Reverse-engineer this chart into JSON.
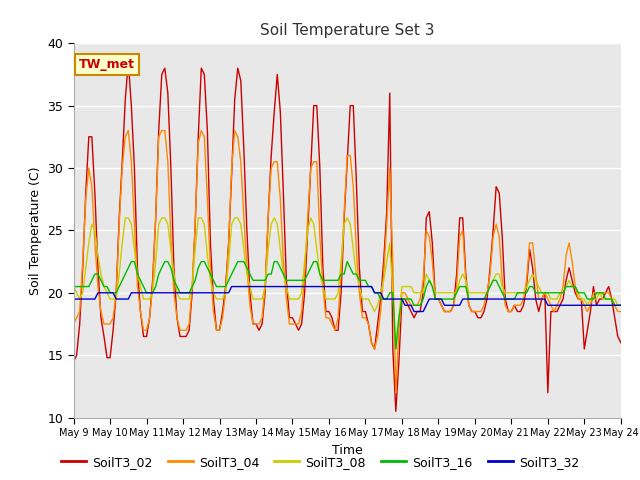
{
  "title": "Soil Temperature Set 3",
  "xlabel": "Time",
  "ylabel": "Soil Temperature (C)",
  "ylim": [
    10,
    40
  ],
  "xlim": [
    0,
    15
  ],
  "bg_color": "#e8e8e8",
  "fig_bg_color": "#ffffff",
  "annotation_text": "TW_met",
  "annotation_bg": "#ffffcc",
  "annotation_border": "#cc8800",
  "series_colors": {
    "SoilT3_02": "#cc0000",
    "SoilT3_04": "#ff8800",
    "SoilT3_08": "#cccc00",
    "SoilT3_16": "#00bb00",
    "SoilT3_32": "#0000cc"
  },
  "xtick_labels": [
    "May 9",
    "May 10",
    "May 11",
    "May 12",
    "May 13",
    "May 14",
    "May 15",
    "May 16",
    "May 17",
    "May 18",
    "May 19",
    "May 20",
    "May 21",
    "May 22",
    "May 23",
    "May 24"
  ],
  "ytick_labels": [
    10,
    15,
    20,
    25,
    30,
    35,
    40
  ],
  "t": [
    0.0,
    0.083,
    0.167,
    0.25,
    0.333,
    0.417,
    0.5,
    0.583,
    0.667,
    0.75,
    0.833,
    0.917,
    1.0,
    1.083,
    1.167,
    1.25,
    1.333,
    1.417,
    1.5,
    1.583,
    1.667,
    1.75,
    1.833,
    1.917,
    2.0,
    2.083,
    2.167,
    2.25,
    2.333,
    2.417,
    2.5,
    2.583,
    2.667,
    2.75,
    2.833,
    2.917,
    3.0,
    3.083,
    3.167,
    3.25,
    3.333,
    3.417,
    3.5,
    3.583,
    3.667,
    3.75,
    3.833,
    3.917,
    4.0,
    4.083,
    4.167,
    4.25,
    4.333,
    4.417,
    4.5,
    4.583,
    4.667,
    4.75,
    4.833,
    4.917,
    5.0,
    5.083,
    5.167,
    5.25,
    5.333,
    5.417,
    5.5,
    5.583,
    5.667,
    5.75,
    5.833,
    5.917,
    6.0,
    6.083,
    6.167,
    6.25,
    6.333,
    6.417,
    6.5,
    6.583,
    6.667,
    6.75,
    6.833,
    6.917,
    7.0,
    7.083,
    7.167,
    7.25,
    7.333,
    7.417,
    7.5,
    7.583,
    7.667,
    7.75,
    7.833,
    7.917,
    8.0,
    8.083,
    8.167,
    8.25,
    8.333,
    8.417,
    8.5,
    8.583,
    8.667,
    8.75,
    8.833,
    8.917,
    9.0,
    9.083,
    9.167,
    9.25,
    9.333,
    9.417,
    9.5,
    9.583,
    9.667,
    9.75,
    9.833,
    9.917,
    10.0,
    10.083,
    10.167,
    10.25,
    10.333,
    10.417,
    10.5,
    10.583,
    10.667,
    10.75,
    10.833,
    10.917,
    11.0,
    11.083,
    11.167,
    11.25,
    11.333,
    11.417,
    11.5,
    11.583,
    11.667,
    11.75,
    11.833,
    11.917,
    12.0,
    12.083,
    12.167,
    12.25,
    12.333,
    12.417,
    12.5,
    12.583,
    12.667,
    12.75,
    12.833,
    12.917,
    13.0,
    13.083,
    13.167,
    13.25,
    13.333,
    13.417,
    13.5,
    13.583,
    13.667,
    13.75,
    13.833,
    13.917,
    14.0,
    14.083,
    14.167,
    14.25,
    14.333,
    14.417,
    14.5,
    14.583,
    14.667,
    14.75,
    14.833,
    14.917,
    15.0
  ],
  "SoilT3_02": [
    14.5,
    15.0,
    17.5,
    22.0,
    28.0,
    32.5,
    32.5,
    28.0,
    22.0,
    18.0,
    16.5,
    14.8,
    14.8,
    17.0,
    20.0,
    26.0,
    30.5,
    35.5,
    38.5,
    35.0,
    30.0,
    22.0,
    18.5,
    16.5,
    16.5,
    18.0,
    21.0,
    26.0,
    33.0,
    37.5,
    38.0,
    36.0,
    30.0,
    22.0,
    18.0,
    16.5,
    16.5,
    16.5,
    17.0,
    20.0,
    25.5,
    32.5,
    38.0,
    37.5,
    33.0,
    24.0,
    19.5,
    17.0,
    17.0,
    18.5,
    20.5,
    24.0,
    29.5,
    35.5,
    38.0,
    37.0,
    31.5,
    25.0,
    20.0,
    17.5,
    17.5,
    17.0,
    17.5,
    20.0,
    26.0,
    31.0,
    34.5,
    37.5,
    34.5,
    28.0,
    21.0,
    18.0,
    18.0,
    17.5,
    17.0,
    17.5,
    20.0,
    25.0,
    30.0,
    35.0,
    35.0,
    30.0,
    22.0,
    18.5,
    18.5,
    18.0,
    17.0,
    17.0,
    20.0,
    26.0,
    30.5,
    35.0,
    35.0,
    29.0,
    22.0,
    18.5,
    18.5,
    17.5,
    16.0,
    15.5,
    17.5,
    19.5,
    22.5,
    26.5,
    36.0,
    15.5,
    10.5,
    14.5,
    19.5,
    19.5,
    19.0,
    18.5,
    18.0,
    18.5,
    18.5,
    20.0,
    26.0,
    26.5,
    24.0,
    19.5,
    19.5,
    19.0,
    18.5,
    18.5,
    18.5,
    19.0,
    21.5,
    26.0,
    26.0,
    21.5,
    19.0,
    18.5,
    18.5,
    18.0,
    18.0,
    18.5,
    19.5,
    22.0,
    25.0,
    28.5,
    28.0,
    24.5,
    19.5,
    18.5,
    18.5,
    19.0,
    18.5,
    18.5,
    19.0,
    20.5,
    23.5,
    22.0,
    19.5,
    18.5,
    19.5,
    20.0,
    12.0,
    18.5,
    18.5,
    18.5,
    19.0,
    19.5,
    21.0,
    22.0,
    21.0,
    20.0,
    19.5,
    19.5,
    15.5,
    17.0,
    18.5,
    20.5,
    19.0,
    19.5,
    19.5,
    20.0,
    20.5,
    19.5,
    18.0,
    16.5,
    16.0
  ],
  "SoilT3_04": [
    17.5,
    18.0,
    18.5,
    22.5,
    27.5,
    30.0,
    28.5,
    24.0,
    20.5,
    18.5,
    17.5,
    17.5,
    17.5,
    18.0,
    20.0,
    25.5,
    30.0,
    32.5,
    33.0,
    30.5,
    25.5,
    20.5,
    18.5,
    17.0,
    17.0,
    18.0,
    20.5,
    26.0,
    32.5,
    33.0,
    33.0,
    30.5,
    24.5,
    20.0,
    18.0,
    17.0,
    17.0,
    17.0,
    17.5,
    20.5,
    25.5,
    32.0,
    33.0,
    32.5,
    27.5,
    22.0,
    18.5,
    17.0,
    17.0,
    18.0,
    20.0,
    24.0,
    30.0,
    33.0,
    32.5,
    30.5,
    26.0,
    22.0,
    19.0,
    17.5,
    17.5,
    17.5,
    18.0,
    20.5,
    26.0,
    30.0,
    30.5,
    30.5,
    27.5,
    22.5,
    19.5,
    17.5,
    17.5,
    17.5,
    17.5,
    18.5,
    21.5,
    26.0,
    30.0,
    30.5,
    30.5,
    24.5,
    20.5,
    18.0,
    18.0,
    17.5,
    17.0,
    18.0,
    21.5,
    26.5,
    31.0,
    31.0,
    28.5,
    23.5,
    20.0,
    18.0,
    18.0,
    17.5,
    16.0,
    15.5,
    16.5,
    18.5,
    21.5,
    25.5,
    30.0,
    22.5,
    12.0,
    17.0,
    20.0,
    20.0,
    19.5,
    19.0,
    19.0,
    19.0,
    19.5,
    21.0,
    25.0,
    24.5,
    22.5,
    19.5,
    19.5,
    19.0,
    18.5,
    18.5,
    18.5,
    19.0,
    20.5,
    24.5,
    25.0,
    21.0,
    19.0,
    18.5,
    18.5,
    18.5,
    18.5,
    19.0,
    20.0,
    21.5,
    24.5,
    25.5,
    24.5,
    21.0,
    19.0,
    18.5,
    18.5,
    19.0,
    19.0,
    19.0,
    19.5,
    21.0,
    24.0,
    24.0,
    21.5,
    19.5,
    19.5,
    20.0,
    19.5,
    19.0,
    18.5,
    19.0,
    19.5,
    20.5,
    23.0,
    24.0,
    22.5,
    20.5,
    19.5,
    19.5,
    19.0,
    18.5,
    19.0,
    20.0,
    20.0,
    20.0,
    20.0,
    20.0,
    20.0,
    19.5,
    19.0,
    18.5,
    18.5
  ],
  "SoilT3_08": [
    20.5,
    20.0,
    19.5,
    20.0,
    22.0,
    24.0,
    25.5,
    25.0,
    23.0,
    21.5,
    20.5,
    20.0,
    19.5,
    19.5,
    19.5,
    21.5,
    24.0,
    26.0,
    26.0,
    25.5,
    23.5,
    21.5,
    20.5,
    19.5,
    19.5,
    19.5,
    20.0,
    22.5,
    25.5,
    26.0,
    26.0,
    25.5,
    23.5,
    21.5,
    20.0,
    19.5,
    19.5,
    19.5,
    19.5,
    20.5,
    23.5,
    26.0,
    26.0,
    25.5,
    23.0,
    21.0,
    20.0,
    19.5,
    19.5,
    19.5,
    20.0,
    22.5,
    25.5,
    26.0,
    26.0,
    25.5,
    23.5,
    21.5,
    20.5,
    19.5,
    19.5,
    19.5,
    19.5,
    20.5,
    23.5,
    25.5,
    26.0,
    25.5,
    23.5,
    21.5,
    20.5,
    19.5,
    19.5,
    19.5,
    19.5,
    20.0,
    22.5,
    25.0,
    26.0,
    25.5,
    23.5,
    21.5,
    20.5,
    19.5,
    19.5,
    19.5,
    19.5,
    20.0,
    22.5,
    25.5,
    26.0,
    25.5,
    23.5,
    21.5,
    20.5,
    19.5,
    19.5,
    19.5,
    19.0,
    18.5,
    19.0,
    20.0,
    21.0,
    22.5,
    24.0,
    20.0,
    15.5,
    18.0,
    20.5,
    20.5,
    20.5,
    20.5,
    20.0,
    20.0,
    20.0,
    20.0,
    21.5,
    21.0,
    20.5,
    20.0,
    20.0,
    20.0,
    20.0,
    20.0,
    20.0,
    20.0,
    20.0,
    21.0,
    21.5,
    21.0,
    20.0,
    20.0,
    20.0,
    20.0,
    20.0,
    20.0,
    20.0,
    20.5,
    21.0,
    21.5,
    21.5,
    20.5,
    20.0,
    20.0,
    20.0,
    20.0,
    20.0,
    20.0,
    20.0,
    20.5,
    21.0,
    21.5,
    21.0,
    20.5,
    20.0,
    20.0,
    20.0,
    19.5,
    19.5,
    19.5,
    20.0,
    20.0,
    20.5,
    21.0,
    20.5,
    20.5,
    20.0,
    19.5,
    19.5,
    19.0,
    19.5,
    19.5,
    19.5,
    20.0,
    19.5,
    19.5,
    19.5,
    19.5,
    19.5,
    19.0,
    19.0
  ],
  "SoilT3_16": [
    20.5,
    20.5,
    20.5,
    20.5,
    20.5,
    20.5,
    21.0,
    21.5,
    21.5,
    21.0,
    20.5,
    20.5,
    20.0,
    20.0,
    20.0,
    20.5,
    21.0,
    21.5,
    22.0,
    22.5,
    22.5,
    21.5,
    21.0,
    20.5,
    20.0,
    20.0,
    20.0,
    20.5,
    21.5,
    22.0,
    22.5,
    22.5,
    22.0,
    21.0,
    20.5,
    20.0,
    20.0,
    20.0,
    20.0,
    20.5,
    21.0,
    22.0,
    22.5,
    22.5,
    22.0,
    21.5,
    21.0,
    20.5,
    20.5,
    20.5,
    20.5,
    21.0,
    21.5,
    22.0,
    22.5,
    22.5,
    22.5,
    22.0,
    21.5,
    21.0,
    21.0,
    21.0,
    21.0,
    21.0,
    21.5,
    21.5,
    22.5,
    22.5,
    22.0,
    21.5,
    21.0,
    21.0,
    21.0,
    21.0,
    21.0,
    21.0,
    21.0,
    21.5,
    22.0,
    22.5,
    22.5,
    21.5,
    21.0,
    21.0,
    21.0,
    21.0,
    21.0,
    21.0,
    21.5,
    21.5,
    22.5,
    22.0,
    21.5,
    21.5,
    21.0,
    21.0,
    21.0,
    20.5,
    20.5,
    20.0,
    20.0,
    19.5,
    19.5,
    19.5,
    20.0,
    20.0,
    15.5,
    18.0,
    19.5,
    19.5,
    19.5,
    19.5,
    19.0,
    19.0,
    19.0,
    19.5,
    20.5,
    21.0,
    20.5,
    19.5,
    19.5,
    19.5,
    19.5,
    19.5,
    19.5,
    19.5,
    20.0,
    20.5,
    20.5,
    20.5,
    19.5,
    19.5,
    19.5,
    19.5,
    19.5,
    19.5,
    20.0,
    20.5,
    21.0,
    21.0,
    20.5,
    20.0,
    19.5,
    19.5,
    19.5,
    19.5,
    20.0,
    20.0,
    20.0,
    20.0,
    20.5,
    20.5,
    20.0,
    20.0,
    20.0,
    20.0,
    20.0,
    20.0,
    20.0,
    20.0,
    20.0,
    20.0,
    20.5,
    20.5,
    20.5,
    20.5,
    20.0,
    20.0,
    20.0,
    19.5,
    19.5,
    19.5,
    20.0,
    20.0,
    20.0,
    19.5,
    19.5,
    19.5,
    19.0,
    19.0,
    19.0
  ],
  "SoilT3_32": [
    19.5,
    19.5,
    19.5,
    19.5,
    19.5,
    19.5,
    19.5,
    19.5,
    20.0,
    20.0,
    20.0,
    20.0,
    20.0,
    20.0,
    19.5,
    19.5,
    19.5,
    19.5,
    19.5,
    20.0,
    20.0,
    20.0,
    20.0,
    20.0,
    20.0,
    20.0,
    20.0,
    20.0,
    20.0,
    20.0,
    20.0,
    20.0,
    20.0,
    20.0,
    20.0,
    20.0,
    20.0,
    20.0,
    20.0,
    20.0,
    20.0,
    20.0,
    20.0,
    20.0,
    20.0,
    20.0,
    20.0,
    20.0,
    20.0,
    20.0,
    20.0,
    20.0,
    20.5,
    20.5,
    20.5,
    20.5,
    20.5,
    20.5,
    20.5,
    20.5,
    20.5,
    20.5,
    20.5,
    20.5,
    20.5,
    20.5,
    20.5,
    20.5,
    20.5,
    20.5,
    20.5,
    20.5,
    20.5,
    20.5,
    20.5,
    20.5,
    20.5,
    20.5,
    20.5,
    20.5,
    20.5,
    20.5,
    20.5,
    20.5,
    20.5,
    20.5,
    20.5,
    20.5,
    20.5,
    20.5,
    20.5,
    20.5,
    20.5,
    20.5,
    20.5,
    20.5,
    20.5,
    20.5,
    20.5,
    20.0,
    20.0,
    20.0,
    19.5,
    19.5,
    19.5,
    19.5,
    19.5,
    19.5,
    19.5,
    19.0,
    19.0,
    19.0,
    18.5,
    18.5,
    18.5,
    18.5,
    19.0,
    19.5,
    19.5,
    19.5,
    19.5,
    19.5,
    19.0,
    19.0,
    19.0,
    19.0,
    19.0,
    19.0,
    19.5,
    19.5,
    19.5,
    19.5,
    19.5,
    19.5,
    19.5,
    19.5,
    19.5,
    19.5,
    19.5,
    19.5,
    19.5,
    19.5,
    19.5,
    19.5,
    19.5,
    19.5,
    19.5,
    19.5,
    19.5,
    19.5,
    19.5,
    19.5,
    19.5,
    19.5,
    19.5,
    19.5,
    19.0,
    19.0,
    19.0,
    19.0,
    19.0,
    19.0,
    19.0,
    19.0,
    19.0,
    19.0,
    19.0,
    19.0,
    19.0,
    19.0,
    19.0,
    19.0,
    19.0,
    19.0,
    19.0,
    19.0,
    19.0,
    19.0,
    19.0,
    19.0,
    19.0
  ]
}
